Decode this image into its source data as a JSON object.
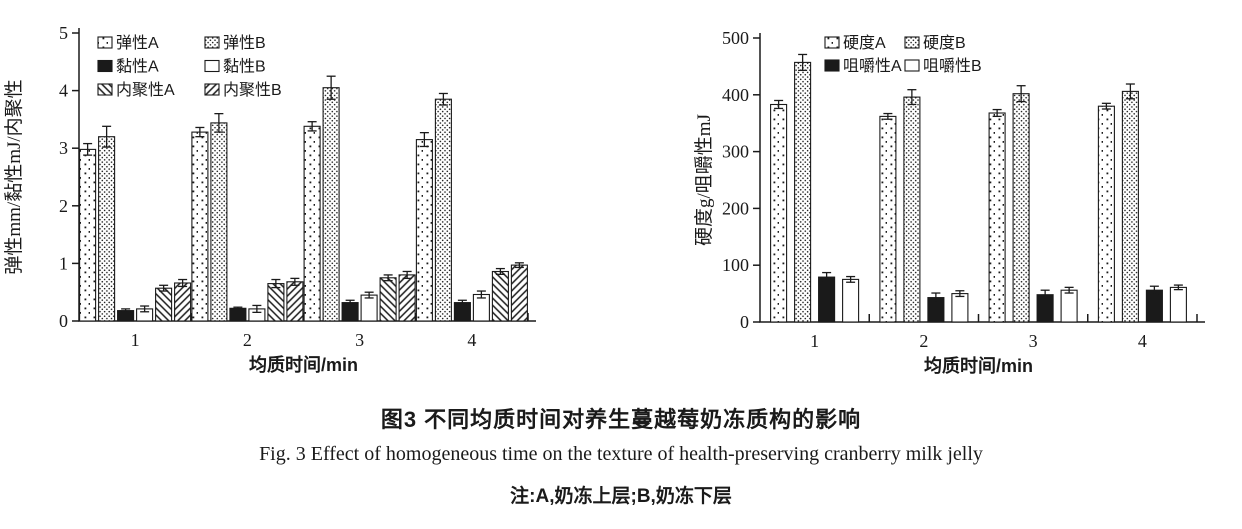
{
  "figure": {
    "caption_cn": "图3  不同均质时间对养生蔓越莓奶冻质构的影响",
    "caption_en": "Fig. 3  Effect of homogeneous time on the texture of health-preserving cranberry milk jelly",
    "note": "注:A,奶冻上层;B,奶冻下层"
  },
  "chart_data": [
    {
      "type": "bar",
      "title": "",
      "xlabel": "均质时间/min",
      "ylabel": "弹性mm/黏性mJ/内聚性",
      "ylim": [
        0,
        5
      ],
      "yticks": [
        0,
        1,
        2,
        3,
        4,
        5
      ],
      "categories": [
        "1",
        "2",
        "3",
        "4"
      ],
      "grid": false,
      "legend": {
        "position": "top-left-inside",
        "columns": 2
      },
      "series": [
        {
          "name": "弹性A",
          "pattern": "dots-sparse",
          "values": [
            2.98,
            3.28,
            3.38,
            3.15
          ],
          "errors": [
            0.1,
            0.08,
            0.08,
            0.12
          ]
        },
        {
          "name": "弹性B",
          "pattern": "dots-dense",
          "values": [
            3.2,
            3.44,
            4.05,
            3.85
          ],
          "errors": [
            0.18,
            0.16,
            0.2,
            0.1
          ]
        },
        {
          "name": "黏性A",
          "pattern": "solid-black",
          "values": [
            0.18,
            0.22,
            0.32,
            0.32
          ],
          "errors": [
            0.03,
            0.02,
            0.04,
            0.04
          ]
        },
        {
          "name": "黏性B",
          "pattern": "solid-white",
          "values": [
            0.21,
            0.21,
            0.45,
            0.46
          ],
          "errors": [
            0.05,
            0.06,
            0.05,
            0.06
          ]
        },
        {
          "name": "内聚性A",
          "pattern": "hatch-back",
          "values": [
            0.57,
            0.65,
            0.75,
            0.86
          ],
          "errors": [
            0.05,
            0.07,
            0.05,
            0.05
          ]
        },
        {
          "name": "内聚性B",
          "pattern": "hatch-fwd",
          "values": [
            0.66,
            0.68,
            0.8,
            0.97
          ],
          "errors": [
            0.06,
            0.06,
            0.06,
            0.04
          ]
        }
      ]
    },
    {
      "type": "bar",
      "title": "",
      "xlabel": "均质时间/min",
      "ylabel": "硬度g/咀嚼性mJ",
      "ylim": [
        0,
        500
      ],
      "yticks": [
        0,
        100,
        200,
        300,
        400,
        500
      ],
      "categories": [
        "1",
        "2",
        "3",
        "4"
      ],
      "grid": false,
      "legend": {
        "position": "top-left-inside",
        "columns": 2
      },
      "series": [
        {
          "name": "硬度A",
          "pattern": "dots-sparse",
          "values": [
            383,
            362,
            368,
            380
          ],
          "errors": [
            7,
            5,
            6,
            5
          ]
        },
        {
          "name": "硬度B",
          "pattern": "dots-dense",
          "values": [
            457,
            396,
            402,
            406
          ],
          "errors": [
            14,
            13,
            14,
            13
          ]
        },
        {
          "name": "咀嚼性A",
          "pattern": "solid-black",
          "values": [
            79,
            43,
            48,
            56
          ],
          "errors": [
            8,
            8,
            8,
            7
          ]
        },
        {
          "name": "咀嚼性B",
          "pattern": "solid-white",
          "values": [
            75,
            50,
            56,
            61
          ],
          "errors": [
            5,
            5,
            5,
            4
          ]
        }
      ]
    }
  ]
}
